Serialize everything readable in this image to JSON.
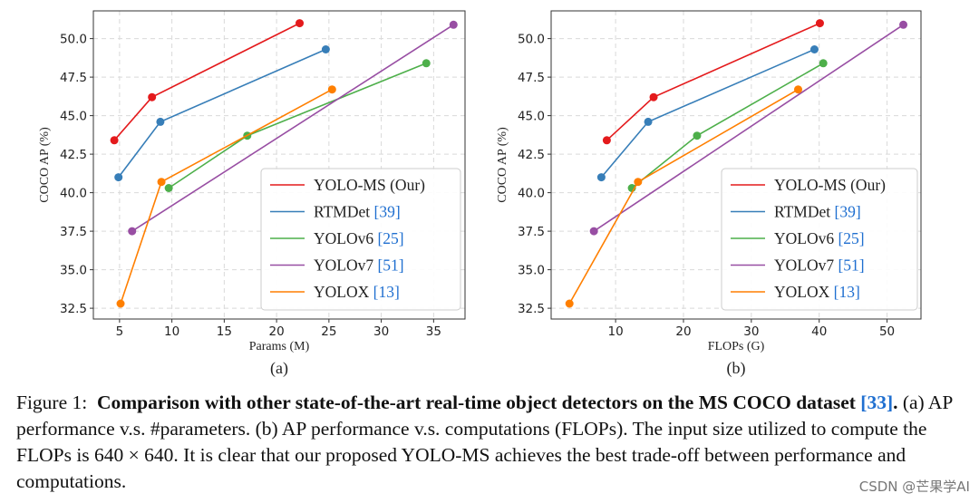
{
  "chart_data": [
    {
      "type": "line",
      "panel_label": "(a)",
      "xlabel": "Params (M)",
      "ylabel": "COCO AP (%)",
      "xlim": [
        2.5,
        38
      ],
      "ylim": [
        31.8,
        51.8
      ],
      "xticks": [
        5,
        10,
        15,
        20,
        25,
        30,
        35
      ],
      "yticks": [
        "32.5",
        "35.0",
        "37.5",
        "40.0",
        "42.5",
        "45.0",
        "47.5",
        "50.0"
      ],
      "grid": true,
      "legend_position": "center-right",
      "series": [
        {
          "name": "YOLO-MS (Our)",
          "ref": "",
          "color": "#e41a1c",
          "x": [
            4.5,
            8.1,
            22.2
          ],
          "y": [
            43.4,
            46.2,
            51.0
          ]
        },
        {
          "name": "RTMDet",
          "ref": "[39]",
          "color": "#377eb8",
          "x": [
            4.9,
            8.9,
            24.7
          ],
          "y": [
            41.0,
            44.6,
            49.3
          ]
        },
        {
          "name": "YOLOv6",
          "ref": "[25]",
          "color": "#4daf4a",
          "x": [
            9.7,
            17.2,
            34.3
          ],
          "y": [
            40.3,
            43.7,
            48.4
          ]
        },
        {
          "name": "YOLOv7",
          "ref": "[51]",
          "color": "#984ea3",
          "x": [
            6.2,
            36.9
          ],
          "y": [
            37.5,
            50.9
          ]
        },
        {
          "name": "YOLOX",
          "ref": "[13]",
          "color": "#ff7f00",
          "x": [
            5.1,
            9.0,
            25.3
          ],
          "y": [
            32.8,
            40.7,
            46.7
          ]
        }
      ]
    },
    {
      "type": "line",
      "panel_label": "(b)",
      "xlabel": "FLOPs (G)",
      "ylabel": "COCO AP (%)",
      "xlim": [
        0.5,
        55
      ],
      "ylim": [
        31.8,
        51.8
      ],
      "xticks": [
        10,
        20,
        30,
        40,
        50
      ],
      "yticks": [
        "32.5",
        "35.0",
        "37.5",
        "40.0",
        "42.5",
        "45.0",
        "47.5",
        "50.0"
      ],
      "grid": true,
      "legend_position": "center-right",
      "series": [
        {
          "name": "YOLO-MS (Our)",
          "ref": "",
          "color": "#e41a1c",
          "x": [
            8.7,
            15.6,
            40.1
          ],
          "y": [
            43.4,
            46.2,
            51.0
          ]
        },
        {
          "name": "RTMDet",
          "ref": "[39]",
          "color": "#377eb8",
          "x": [
            7.9,
            14.8,
            39.3
          ],
          "y": [
            41.0,
            44.6,
            49.3
          ]
        },
        {
          "name": "YOLOv6",
          "ref": "[25]",
          "color": "#4daf4a",
          "x": [
            12.4,
            22.0,
            40.6
          ],
          "y": [
            40.3,
            43.7,
            48.4
          ]
        },
        {
          "name": "YOLOv7",
          "ref": "[51]",
          "color": "#984ea3",
          "x": [
            6.8,
            52.4
          ],
          "y": [
            37.5,
            50.9
          ]
        },
        {
          "name": "YOLOX",
          "ref": "[13]",
          "color": "#ff7f00",
          "x": [
            3.2,
            13.3,
            36.9
          ],
          "y": [
            32.8,
            40.7,
            46.7
          ]
        }
      ]
    }
  ],
  "caption": {
    "figure_label": "Figure 1:",
    "bold_text": "Comparison with other state-of-the-art real-time object detectors on the MS COCO dataset",
    "bold_ref": "[33]",
    "bold_end": ".",
    "text_a": "(a) AP performance v.s. #parameters. (b) AP performance v.s. computations (FLOPs). The input size utilized to compute the FLOPs is 640 × 640. It is clear that our proposed YOLO-MS achieves the best trade-off between performance and computations."
  },
  "watermark": "CSDN @芒果学AI"
}
